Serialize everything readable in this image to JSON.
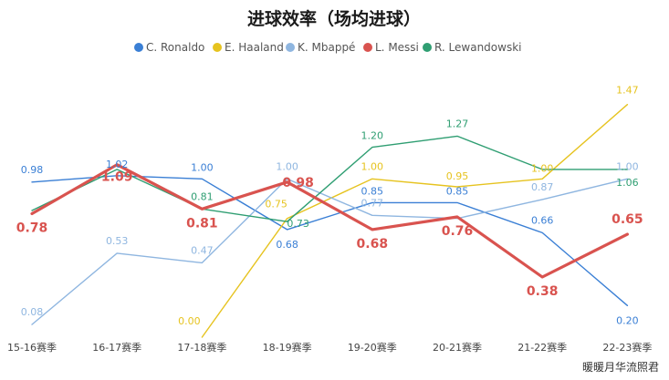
{
  "chart_data": {
    "type": "line",
    "title": "进球效率（场均进球）",
    "categories": [
      "15-16赛季",
      "16-17赛季",
      "17-18赛季",
      "18-19赛季",
      "19-20赛季",
      "20-21赛季",
      "21-22赛季",
      "22-23赛季"
    ],
    "ylim": [
      0,
      1.5
    ],
    "grid": false,
    "legend_position": "top",
    "series": [
      {
        "name": "C. Ronaldo",
        "color": "#3a7fd5",
        "values": [
          0.98,
          1.02,
          1.0,
          0.68,
          0.85,
          0.85,
          0.66,
          0.2
        ],
        "labels": [
          "0.98",
          "1.02",
          "1.00",
          "0.68",
          "0.85",
          "0.85",
          "0.66",
          "0.20"
        ]
      },
      {
        "name": "E. Haaland",
        "color": "#e6c31f",
        "values": [
          null,
          null,
          0.0,
          0.75,
          1.0,
          0.95,
          1.0,
          1.47
        ],
        "labels": [
          null,
          null,
          "0.00",
          "0.75",
          "1.00",
          "0.95",
          "1.00",
          "1.47"
        ]
      },
      {
        "name": "K. Mbappé",
        "color": "#8fb6e0",
        "values": [
          0.08,
          0.53,
          0.47,
          1.0,
          0.77,
          0.75,
          0.87,
          1.0
        ],
        "labels": [
          "0.08",
          "0.53",
          "0.47",
          "1.00",
          "0.77",
          null,
          "0.87",
          "1.00"
        ]
      },
      {
        "name": "L. Messi",
        "color": "#d9534f",
        "values": [
          0.78,
          1.09,
          0.81,
          0.98,
          0.68,
          0.76,
          0.38,
          0.65
        ],
        "labels": [
          "0.78",
          "1.09",
          "0.81",
          "0.98",
          "0.68",
          "0.76",
          "0.38",
          "0.65"
        ]
      },
      {
        "name": "R. Lewandowski",
        "color": "#2f9e72",
        "values": [
          0.8,
          1.06,
          0.81,
          0.73,
          1.2,
          1.27,
          1.06,
          1.06
        ],
        "labels": [
          null,
          null,
          "0.81",
          "0.73",
          "1.20",
          "1.27",
          null,
          "1.06"
        ]
      }
    ]
  },
  "watermark": "暖暖月华流照君"
}
